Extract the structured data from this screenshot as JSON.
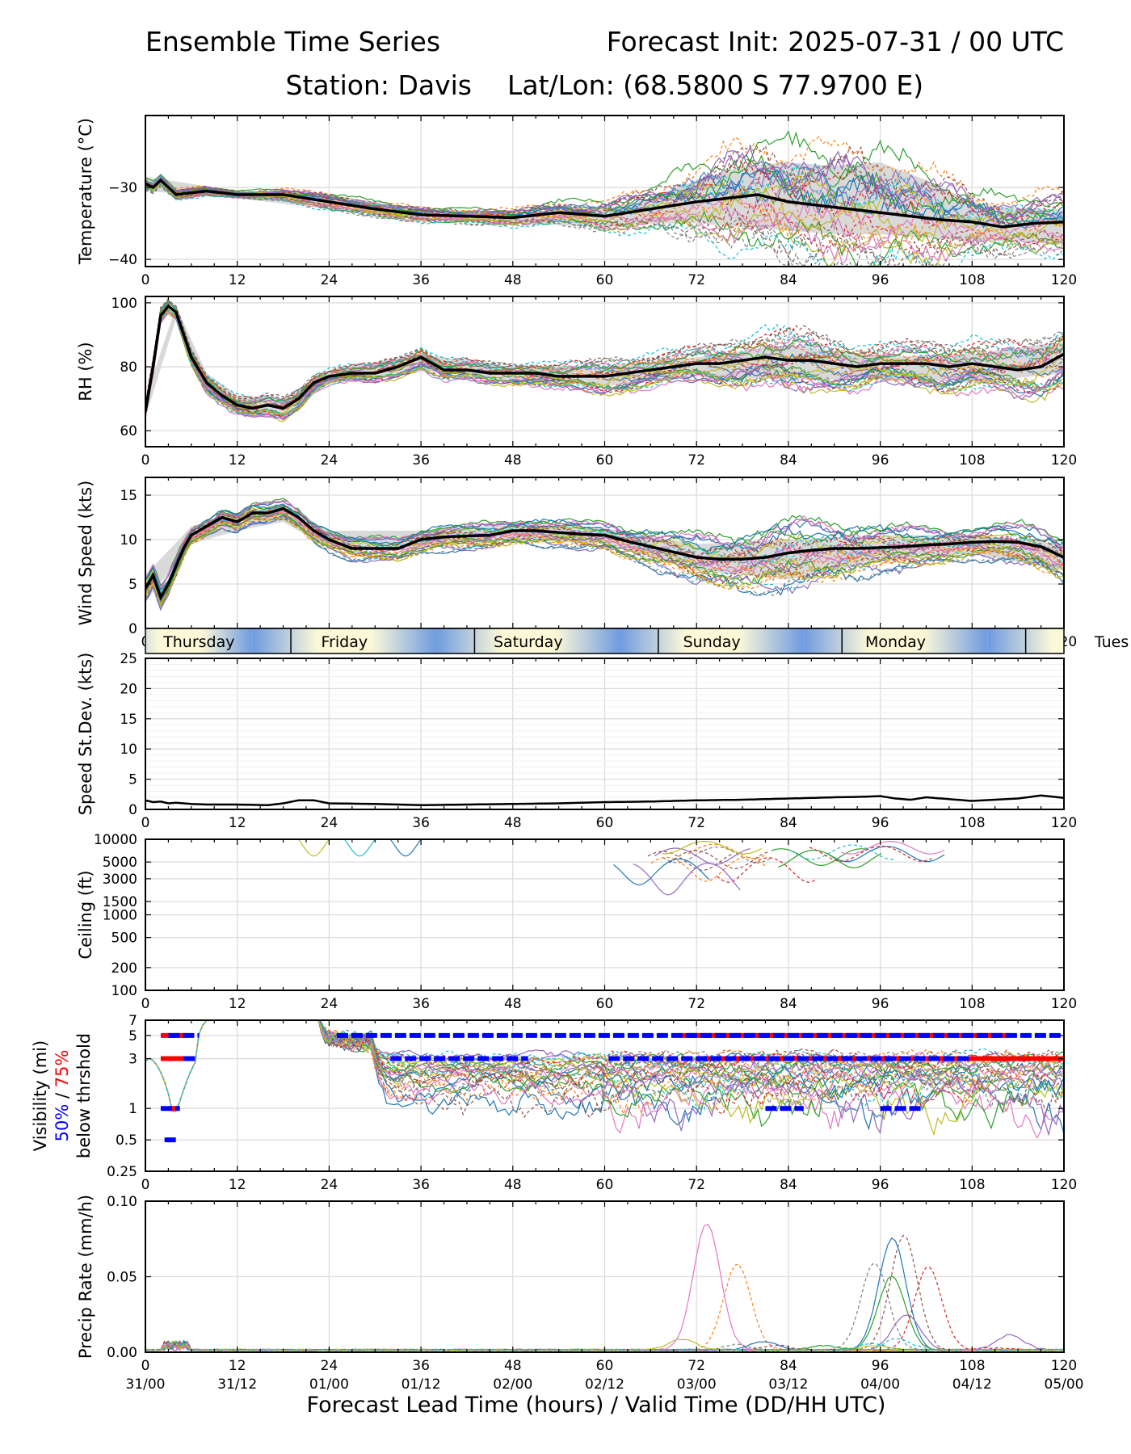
{
  "header": {
    "title_left": "Ensemble Time Series",
    "title_right": "Forecast Init: 2025-07-31 / 00 UTC",
    "station": "Station: Davis",
    "latlon": "Lat/Lon: (68.5800 S 77.9700 E)"
  },
  "x_axis": {
    "label": "Forecast Lead Time (hours) / Valid Time (DD/HH UTC)",
    "ticks": [
      0,
      12,
      24,
      36,
      48,
      60,
      72,
      84,
      96,
      108,
      120
    ],
    "valid_time_labels": [
      "31/00",
      "31/12",
      "01/00",
      "01/12",
      "02/00",
      "02/12",
      "03/00",
      "03/12",
      "04/00",
      "04/12",
      "05/00"
    ],
    "range": [
      0,
      120
    ]
  },
  "day_band": {
    "days": [
      {
        "name": "Thursday",
        "start": 0,
        "end": 19
      },
      {
        "name": "Friday",
        "start": 19,
        "end": 43
      },
      {
        "name": "Saturday",
        "start": 43,
        "end": 67
      },
      {
        "name": "Sunday",
        "start": 67,
        "end": 91
      },
      {
        "name": "Monday",
        "start": 91,
        "end": 115
      },
      {
        "name": "Tues",
        "start": 115,
        "end": 139
      }
    ]
  },
  "colors": {
    "ensemble_palette": [
      "#1f77b4",
      "#ff7f0e",
      "#2ca02c",
      "#d62728",
      "#9467bd",
      "#8c564b",
      "#e377c2",
      "#7f7f7f",
      "#bcbd22",
      "#17becf"
    ],
    "mean": "#000000",
    "spread_band": "#d9d9d9",
    "vis_50": "#0000ff",
    "vis_75": "#ff0000",
    "day_band_blue": "#6f9be0",
    "day_band_cream": "#fbf8d8"
  },
  "chart_data": [
    {
      "id": "temperature",
      "type": "line",
      "ylabel": "Temperature (°C)",
      "ylim": [
        -41,
        -20
      ],
      "yticks": [
        -30,
        -40
      ],
      "ytick_labels": [
        "−30",
        "−40"
      ],
      "grid": true,
      "spread_band": true,
      "mean": {
        "x": [
          0,
          1,
          2,
          4,
          8,
          12,
          18,
          24,
          30,
          36,
          42,
          48,
          54,
          60,
          66,
          72,
          76,
          80,
          84,
          88,
          92,
          96,
          100,
          104,
          108,
          112,
          116,
          120
        ],
        "y": [
          -29.5,
          -30,
          -29,
          -31,
          -30.5,
          -31,
          -31,
          -32,
          -33,
          -33.8,
          -34,
          -34.2,
          -33.5,
          -34,
          -33,
          -32,
          -31.5,
          -31,
          -32,
          -32.5,
          -33,
          -33.5,
          -34,
          -34.5,
          -34.8,
          -35.5,
          -35,
          -34.8
        ]
      },
      "spread": {
        "x": [
          0,
          12,
          24,
          36,
          48,
          60,
          66,
          72,
          78,
          84,
          90,
          96,
          102,
          108,
          114,
          120
        ],
        "upper": [
          -28.5,
          -30.5,
          -31,
          -33,
          -33.5,
          -33,
          -31.5,
          -29,
          -27,
          -26.5,
          -27,
          -26.5,
          -29,
          -32,
          -33,
          -33
        ],
        "lower": [
          -30.5,
          -31.5,
          -33,
          -34.5,
          -35,
          -35.5,
          -35,
          -35,
          -35.5,
          -36,
          -36.5,
          -36.5,
          -37,
          -37.5,
          -37.5,
          -38
        ]
      },
      "members_count": 30
    },
    {
      "id": "rh",
      "type": "line",
      "ylabel": "RH (%)",
      "ylim": [
        55,
        102
      ],
      "yticks": [
        60,
        80,
        100
      ],
      "grid": true,
      "spread_band": true,
      "mean": {
        "x": [
          0,
          1,
          2,
          3,
          4,
          5,
          6,
          8,
          10,
          12,
          14,
          16,
          18,
          20,
          22,
          24,
          27,
          30,
          33,
          36,
          39,
          42,
          45,
          48,
          51,
          54,
          57,
          60,
          63,
          66,
          69,
          72,
          75,
          78,
          81,
          84,
          87,
          90,
          93,
          96,
          99,
          102,
          105,
          108,
          111,
          114,
          117,
          120
        ],
        "y": [
          66,
          80,
          96,
          99,
          97,
          90,
          83,
          75,
          71,
          68,
          67,
          68,
          67,
          70,
          75,
          77,
          78,
          78,
          80,
          83,
          79,
          79,
          78,
          78,
          78,
          77,
          77,
          77,
          78,
          79,
          80,
          81,
          81,
          82,
          83,
          82,
          82,
          81,
          80,
          81,
          81,
          81,
          80,
          81,
          80,
          79,
          80,
          84
        ]
      },
      "spread": {
        "x": [
          0,
          4,
          8,
          12,
          18,
          24,
          36,
          48,
          60,
          72,
          84,
          96,
          108,
          120
        ],
        "upper": [
          70,
          99,
          78,
          71,
          70,
          79,
          84,
          80,
          80,
          83,
          87,
          83,
          84,
          88
        ],
        "lower": [
          64,
          95,
          72,
          65,
          64,
          75,
          79,
          76,
          74,
          77,
          76,
          76,
          75,
          78
        ]
      },
      "members_count": 30
    },
    {
      "id": "wind_speed",
      "type": "line",
      "ylabel": "Wind Speed (kts)",
      "ylim": [
        0,
        17
      ],
      "yticks": [
        0,
        5,
        10,
        15
      ],
      "grid": true,
      "spread_band": true,
      "mean": {
        "x": [
          0,
          1,
          2,
          3,
          4,
          5,
          6,
          8,
          10,
          12,
          14,
          16,
          18,
          20,
          22,
          24,
          27,
          30,
          33,
          36,
          39,
          42,
          45,
          48,
          51,
          54,
          57,
          60,
          63,
          66,
          69,
          72,
          75,
          78,
          81,
          84,
          87,
          90,
          93,
          96,
          99,
          102,
          105,
          108,
          111,
          114,
          117,
          120
        ],
        "y": [
          4.5,
          6,
          3.5,
          5,
          7,
          9,
          10.5,
          11.5,
          12.5,
          12,
          13,
          13,
          13.5,
          12.5,
          11,
          10,
          9,
          9,
          9,
          10,
          10.3,
          10.4,
          10.5,
          11,
          11,
          10.8,
          10.6,
          10.5,
          9.8,
          9.2,
          8.6,
          8,
          7.8,
          7.8,
          8,
          8.5,
          8.8,
          9,
          9,
          9.1,
          9.2,
          9.4,
          9.5,
          9.7,
          9.8,
          9.7,
          9.2,
          8
        ]
      },
      "spread": {
        "x": [
          0,
          6,
          12,
          18,
          24,
          36,
          48,
          60,
          72,
          84,
          96,
          108,
          120
        ],
        "upper": [
          6,
          11.5,
          13,
          14,
          11,
          11,
          11.8,
          11.3,
          9.5,
          10,
          10.5,
          10.5,
          9.5
        ],
        "lower": [
          3,
          9.5,
          11,
          12,
          9,
          9,
          10,
          9.5,
          6.5,
          5.5,
          7.5,
          8.5,
          6.5
        ]
      },
      "members_count": 30
    },
    {
      "id": "speed_stdev",
      "type": "line",
      "ylabel": "Speed St.Dev. (kts)",
      "ylim": [
        0,
        25
      ],
      "yticks": [
        0,
        5,
        10,
        15,
        20,
        25
      ],
      "grid": true,
      "series": [
        {
          "x": [
            0,
            1,
            2,
            3,
            4,
            6,
            8,
            12,
            16,
            18,
            20,
            22,
            24,
            30,
            36,
            42,
            48,
            54,
            60,
            66,
            72,
            78,
            84,
            90,
            94,
            96,
            98,
            100,
            102,
            108,
            114,
            117,
            120
          ],
          "values": [
            1.5,
            1.2,
            1.3,
            1.0,
            1.1,
            0.9,
            0.8,
            0.8,
            0.7,
            1.0,
            1.5,
            1.5,
            1.0,
            0.9,
            0.7,
            0.8,
            0.9,
            1.0,
            1.2,
            1.3,
            1.5,
            1.6,
            1.8,
            2.0,
            2.1,
            2.2,
            1.8,
            1.6,
            2.0,
            1.4,
            1.8,
            2.3,
            1.9
          ]
        }
      ]
    },
    {
      "id": "ceiling",
      "type": "line",
      "ylabel": "Ceiling (ft)",
      "yscale": "log",
      "ylim": [
        100,
        10000
      ],
      "yticks": [
        100,
        200,
        500,
        1000,
        1500,
        3000,
        5000,
        10000
      ],
      "grid": true,
      "members_count": 16
    },
    {
      "id": "visibility",
      "type": "line",
      "ylabel": "Visibility (mi)",
      "ylabel_line2_a": "50%",
      "ylabel_line2_sep": " / ",
      "ylabel_line2_b": "75%",
      "ylabel_line3": "below thrshold",
      "yscale": "log",
      "ylim": [
        0.25,
        7
      ],
      "yticks": [
        0.25,
        0.5,
        1,
        3,
        5,
        7
      ],
      "grid": true,
      "members_count": 30,
      "threshold_markers": {
        "blue_50pct": [
          {
            "y": 5,
            "x": [
              [
                3,
                7
              ],
              [
                25,
                120
              ]
            ]
          },
          {
            "y": 3,
            "x": [
              [
                5,
                6.5
              ],
              [
                32,
                50
              ],
              [
                60.5,
                108
              ]
            ]
          },
          {
            "y": 1,
            "x": [
              [
                2,
                4.5
              ],
              [
                81,
                86
              ],
              [
                96,
                101.5
              ]
            ]
          },
          {
            "y": 0.5,
            "x": [
              [
                2.5,
                4
              ]
            ]
          }
        ],
        "red_75pct": [
          {
            "y": 5,
            "x": [
              [
                2,
                5.5
              ],
              [
                70,
                113
              ]
            ]
          },
          {
            "y": 3,
            "x": [
              [
                2,
                5.5
              ],
              [
                72,
                120
              ]
            ]
          },
          {
            "y": 1,
            "x": [
              [
                3,
                4.5
              ]
            ]
          }
        ]
      }
    },
    {
      "id": "precip",
      "type": "line",
      "ylabel": "Precip Rate (mm/h)",
      "ylim": [
        0,
        0.1
      ],
      "yticks": [
        0,
        0.05,
        0.1
      ],
      "ytick_labels": [
        "0.00",
        "0.05",
        "0.10"
      ],
      "grid": true,
      "members_count": 20
    }
  ]
}
